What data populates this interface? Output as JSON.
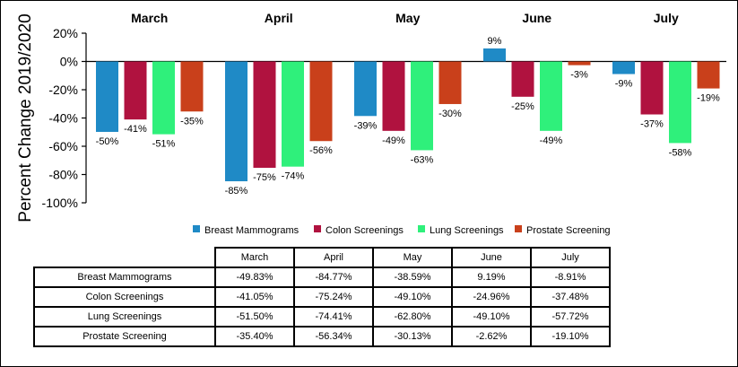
{
  "chart_data": {
    "type": "bar",
    "ylabel": "Percent Change 2019/2020",
    "ylim": [
      -100,
      20
    ],
    "yticks": [
      20,
      0,
      -20,
      -40,
      -60,
      -80,
      -100
    ],
    "ytick_labels": [
      "20%",
      "0%",
      "-20%",
      "-40%",
      "-60%",
      "-80%",
      "-100%"
    ],
    "grid": false,
    "legend_position": "bottom",
    "categories": [
      "March",
      "April",
      "May",
      "June",
      "July"
    ],
    "series": [
      {
        "name": "Breast Mammograms",
        "color": "#1f8ac6",
        "values": [
          -49.83,
          -84.77,
          -38.59,
          9.19,
          -8.91
        ],
        "labels": [
          "-50%",
          "-85%",
          "-39%",
          "9%",
          "-9%"
        ]
      },
      {
        "name": "Colon Screenings",
        "color": "#b0123f",
        "values": [
          -41.05,
          -75.24,
          -49.1,
          -24.96,
          -37.48
        ],
        "labels": [
          "-41%",
          "-75%",
          "-49%",
          "-25%",
          "-37%"
        ]
      },
      {
        "name": "Lung Screenings",
        "color": "#2ff07b",
        "values": [
          -51.5,
          -74.41,
          -62.8,
          -49.1,
          -57.72
        ],
        "labels": [
          "-51%",
          "-74%",
          "-63%",
          "-49%",
          "-58%"
        ]
      },
      {
        "name": "Prostate Screening",
        "color": "#c9401b",
        "values": [
          -35.4,
          -56.34,
          -30.13,
          -2.62,
          -19.1
        ],
        "labels": [
          "-35%",
          "-56%",
          "-30%",
          "-3%",
          "-19%"
        ]
      }
    ]
  },
  "table": {
    "columns": [
      "March",
      "April",
      "May",
      "June",
      "July"
    ],
    "rows": [
      {
        "label": "Breast Mammograms",
        "values": [
          "-49.83%",
          "-84.77%",
          "-38.59%",
          "9.19%",
          "-8.91%"
        ]
      },
      {
        "label": "Colon Screenings",
        "values": [
          "-41.05%",
          "-75.24%",
          "-49.10%",
          "-24.96%",
          "-37.48%"
        ]
      },
      {
        "label": "Lung Screenings",
        "values": [
          "-51.50%",
          "-74.41%",
          "-62.80%",
          "-49.10%",
          "-57.72%"
        ]
      },
      {
        "label": "Prostate Screening",
        "values": [
          "-35.40%",
          "-56.34%",
          "-30.13%",
          "-2.62%",
          "-19.10%"
        ]
      }
    ]
  }
}
